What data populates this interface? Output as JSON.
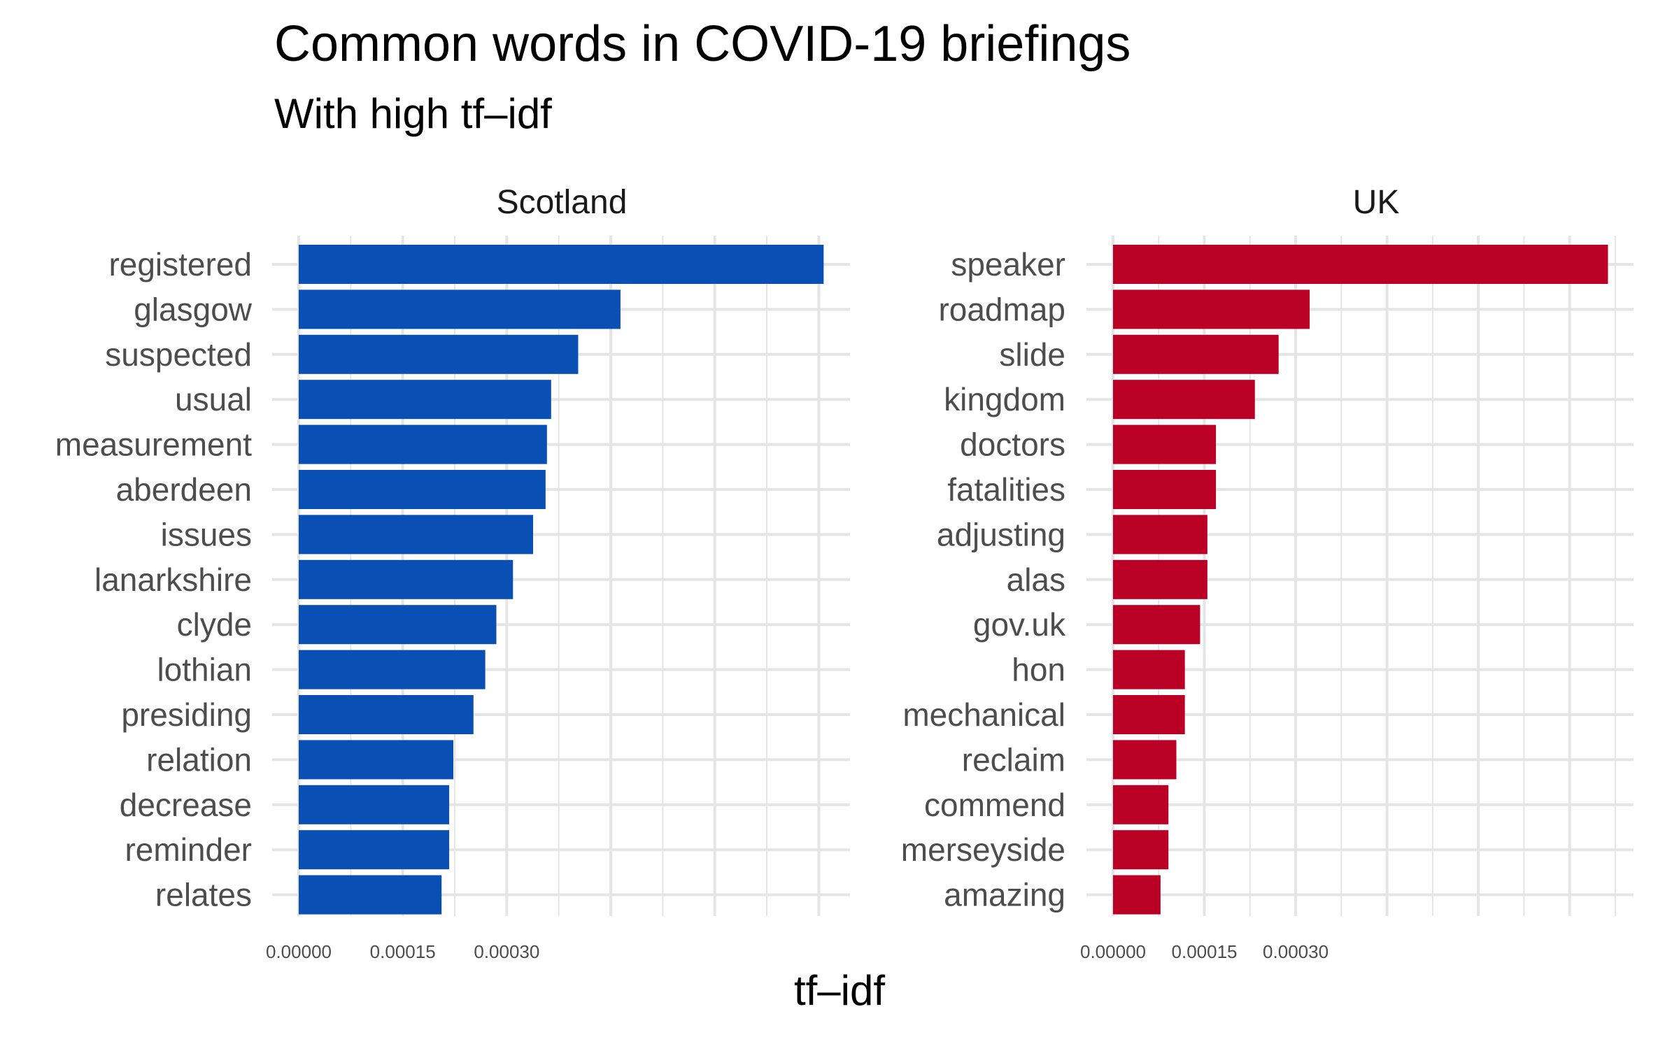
{
  "title": "Common words in COVID-19 briefings",
  "subtitle": "With high tf–idf",
  "xlabel": "tf–idf",
  "colors": {
    "scotland": "#0a50b4",
    "uk": "#bb0026",
    "grid": "#e5e5e5"
  },
  "chart_data": [
    {
      "type": "bar",
      "orientation": "horizontal",
      "panel": "Scotland",
      "title": "Scotland",
      "xlabel": "tf–idf",
      "ylabel": "",
      "xlim": [
        0,
        0.000795
      ],
      "xticks": [
        "0.00000",
        "0.00015",
        "0.00030"
      ],
      "xtick_values": [
        0.0,
        0.00015,
        0.0003
      ],
      "grid": true,
      "categories": [
        "registered",
        "glasgow",
        "suspected",
        "usual",
        "measurement",
        "aberdeen",
        "issues",
        "lanarkshire",
        "clyde",
        "lothian",
        "presiding",
        "relation",
        "decrease",
        "reminder",
        "relates"
      ],
      "values": [
        0.000757,
        0.000464,
        0.000403,
        0.000364,
        0.000358,
        0.000356,
        0.000338,
        0.000309,
        0.000285,
        0.000269,
        0.000252,
        0.000223,
        0.000217,
        0.000217,
        0.000206
      ]
    },
    {
      "type": "bar",
      "orientation": "horizontal",
      "panel": "UK",
      "title": "UK",
      "xlabel": "tf–idf",
      "ylabel": "",
      "xlim": [
        0,
        0.000855
      ],
      "xticks": [
        "0.00000",
        "0.00015",
        "0.00030"
      ],
      "xtick_values": [
        0.0,
        0.00015,
        0.0003
      ],
      "grid": true,
      "categories": [
        "speaker",
        "roadmap",
        "slide",
        "kingdom",
        "doctors",
        "fatalities",
        "adjusting",
        "alas",
        "gov.uk",
        "hon",
        "mechanical",
        "reclaim",
        "commend",
        "merseyside",
        "amazing"
      ],
      "values": [
        0.000813,
        0.000323,
        0.000272,
        0.000233,
        0.000169,
        0.000169,
        0.000155,
        0.000155,
        0.000143,
        0.000118,
        0.000118,
        0.000104,
        9.1e-05,
        9.1e-05,
        7.8e-05
      ]
    }
  ]
}
